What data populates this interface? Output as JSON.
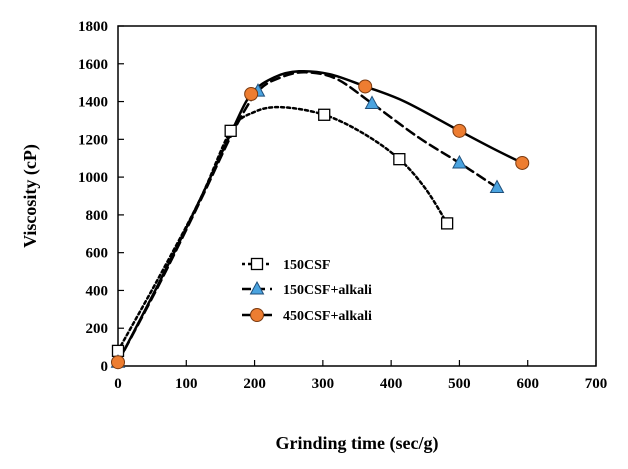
{
  "chart_data": {
    "type": "line",
    "xlabel": "Grinding  time (sec/g)",
    "ylabel": "Viscosity  (cP)",
    "xlim": [
      0,
      700
    ],
    "ylim": [
      0,
      1800
    ],
    "xticks": [
      "0",
      "100",
      "200",
      "300",
      "400",
      "500",
      "600",
      "700"
    ],
    "yticks": [
      "0",
      "200",
      "400",
      "600",
      "800",
      "1000",
      "1200",
      "1400",
      "1600",
      "1800"
    ],
    "grid": false,
    "legend_position": "center-left",
    "series": [
      {
        "name": "150CSF",
        "marker": "square",
        "line_style": "dotted",
        "marker_fill": "#ffffff",
        "marker_stroke": "#000000",
        "points": [
          [
            0,
            80
          ],
          [
            165,
            1245
          ],
          [
            302,
            1330
          ],
          [
            412,
            1095
          ],
          [
            482,
            755
          ]
        ],
        "curve": [
          [
            0,
            80
          ],
          [
            60,
            470
          ],
          [
            120,
            880
          ],
          [
            165,
            1245
          ],
          [
            200,
            1345
          ],
          [
            240,
            1370
          ],
          [
            302,
            1330
          ],
          [
            360,
            1230
          ],
          [
            412,
            1095
          ],
          [
            450,
            940
          ],
          [
            482,
            755
          ]
        ]
      },
      {
        "name": "150CSF+alkali",
        "marker": "triangle",
        "line_style": "dashed",
        "marker_fill": "#4aa3df",
        "marker_stroke": "#1f4e79",
        "points": [
          [
            0,
            20
          ],
          [
            205,
            1455
          ],
          [
            372,
            1390
          ],
          [
            500,
            1075
          ],
          [
            555,
            945
          ]
        ],
        "curve": [
          [
            0,
            20
          ],
          [
            60,
            430
          ],
          [
            120,
            870
          ],
          [
            170,
            1250
          ],
          [
            205,
            1455
          ],
          [
            240,
            1530
          ],
          [
            275,
            1555
          ],
          [
            320,
            1520
          ],
          [
            372,
            1390
          ],
          [
            440,
            1210
          ],
          [
            500,
            1075
          ],
          [
            555,
            945
          ]
        ]
      },
      {
        "name": "450CSF+alkali",
        "marker": "circle",
        "line_style": "solid",
        "marker_fill": "#ed7d31",
        "marker_stroke": "#7a3a10",
        "points": [
          [
            0,
            20
          ],
          [
            195,
            1440
          ],
          [
            362,
            1480
          ],
          [
            500,
            1245
          ],
          [
            592,
            1075
          ]
        ],
        "curve": [
          [
            0,
            20
          ],
          [
            60,
            440
          ],
          [
            120,
            880
          ],
          [
            165,
            1230
          ],
          [
            195,
            1440
          ],
          [
            230,
            1530
          ],
          [
            265,
            1560
          ],
          [
            310,
            1545
          ],
          [
            362,
            1480
          ],
          [
            420,
            1400
          ],
          [
            500,
            1245
          ],
          [
            550,
            1150
          ],
          [
            592,
            1075
          ]
        ]
      }
    ]
  }
}
